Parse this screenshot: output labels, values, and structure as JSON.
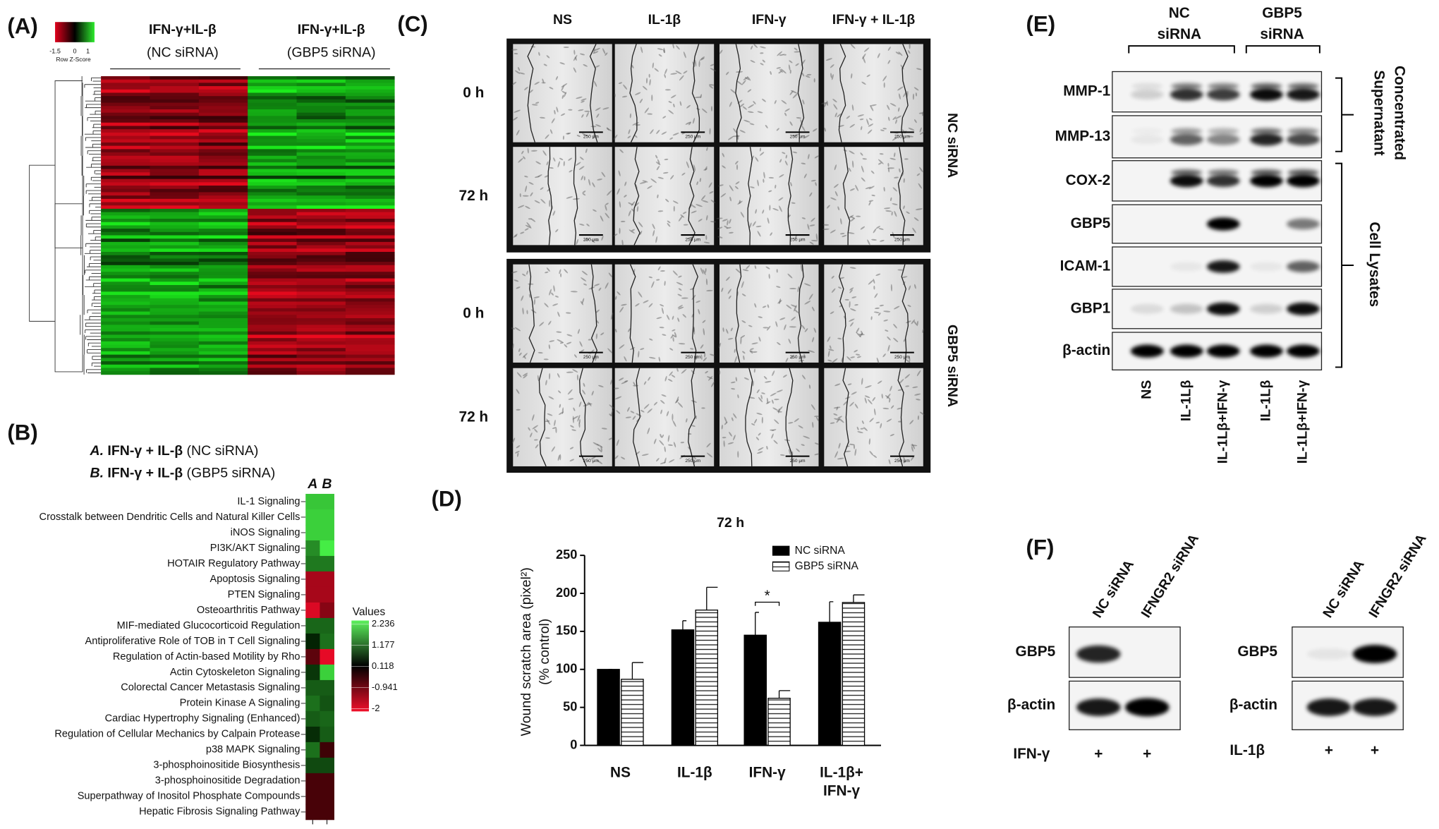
{
  "panels": {
    "A": {
      "label": "(A)",
      "key_ticks": [
        -1.5,
        0,
        1
      ],
      "key_title": "Row Z-Score",
      "groups": [
        {
          "treatment": "IFN-γ+IL-β",
          "group": "(NC siRNA)"
        },
        {
          "treatment": "IFN-γ+IL-β",
          "group": "(GBP5 siRNA)"
        }
      ]
    },
    "B": {
      "label": "(B)",
      "legend": [
        {
          "label": "A.",
          "treatment": "IFN-γ + IL-β",
          "group": "(NC siRNA)"
        },
        {
          "label": "B.",
          "treatment": "IFN-γ + IL-β",
          "group": "(GBP5 siRNA)"
        }
      ],
      "columns": [
        "A",
        "B"
      ],
      "pathways": [
        "IL-1 Signaling",
        "Crosstalk between Dendritic Cells and Natural Killer Cells",
        "iNOS Signaling",
        "PI3K/AKT Signaling",
        "HOTAIR Regulatory Pathway",
        "Apoptosis Signaling",
        "PTEN Signaling",
        "Osteoarthritis Pathway",
        "MIF-mediated Glucocorticoid Regulation",
        "Antiproliferative Role of TOB in T Cell Signaling",
        "Regulation of Actin-based Motility by Rho",
        "Actin Cytoskeleton Signaling",
        "Colorectal Cancer Metastasis Signaling",
        "Protein Kinase A Signaling",
        "Cardiac Hypertrophy Signaling (Enhanced)",
        "Regulation of Cellular Mechanics by Calpain Protease",
        "p38 MAPK Signaling",
        "3-phosphoinositide Biosynthesis",
        "3-phosphoinositide Degradation",
        "Superpathway of Inositol Phosphate Compounds",
        "Hepatic Fibrosis Signaling Pathway"
      ],
      "values": [
        [
          1.8,
          1.8
        ],
        [
          1.9,
          1.9
        ],
        [
          1.9,
          1.9
        ],
        [
          1.2,
          2.2
        ],
        [
          1.0,
          1.0
        ],
        [
          -1.3,
          -1.3
        ],
        [
          -1.3,
          -1.3
        ],
        [
          -1.8,
          -1.0
        ],
        [
          0.8,
          0.8
        ],
        [
          0.1,
          0.9
        ],
        [
          -0.6,
          -1.9
        ],
        [
          0.3,
          1.9
        ],
        [
          0.7,
          0.7
        ],
        [
          0.9,
          0.6
        ],
        [
          0.7,
          0.8
        ],
        [
          0.2,
          0.7
        ],
        [
          0.9,
          -0.3
        ],
        [
          0.5,
          0.5
        ],
        [
          -0.4,
          -0.4
        ],
        [
          -0.4,
          -0.4
        ],
        [
          -0.4,
          -0.4
        ]
      ],
      "colorbar_title": "Values",
      "colorbar_ticks": [
        2.236,
        1.177,
        0.118,
        -0.941,
        -2
      ]
    },
    "C": {
      "label": "(C)",
      "columns": [
        "NS",
        "IL-1β",
        "IFN-γ",
        "IFN-γ + IL-1β"
      ],
      "times": [
        "0 h",
        "72 h"
      ],
      "groups": [
        "NC siRNA",
        "GBP5 siRNA"
      ],
      "scale_bar": "250 μm"
    },
    "D": {
      "label": "(D)"
    },
    "E": {
      "label": "(E)",
      "groups": [
        [
          "NC",
          "siRNA"
        ],
        [
          "GBP5",
          "siRNA"
        ]
      ],
      "rows": [
        "MMP-1",
        "MMP-13",
        "COX-2",
        "GBP5",
        "ICAM-1",
        "GBP1",
        "β-actin"
      ],
      "fractions": [
        [
          "Concentrated",
          "Supernatant"
        ],
        [
          "Cell Lysates"
        ]
      ],
      "lanes": [
        "NS",
        "IL-1Lβ",
        "IL-1Lβ+IFN-γ",
        "IL-1Lβ",
        "IL-1Lβ+IFN-γ"
      ]
    },
    "F": {
      "label": "(F)",
      "blots": [
        {
          "lanes": [
            "NC siRNA",
            "IFNGR2 siRNA"
          ],
          "rows": [
            "GBP5",
            "β-actin"
          ],
          "treatment": "IFN-γ",
          "marks": [
            "+",
            "+"
          ]
        },
        {
          "lanes": [
            "NC siRNA",
            "IFNGR2 siRNA"
          ],
          "rows": [
            "GBP5",
            "β-actin"
          ],
          "treatment": "IL-1β",
          "marks": [
            "+",
            "+"
          ]
        }
      ]
    }
  },
  "chart_data": {
    "type": "bar",
    "title": "72 h",
    "y_label": "Wound scratch area (pixel²)",
    "y_label_2": "(% control)",
    "categories": [
      "NS",
      "IL-1β",
      "IFN-γ",
      "IL-1β+\nIFN-γ"
    ],
    "series": [
      {
        "name": "NC siRNA",
        "color": "#000000",
        "values": [
          100,
          152,
          145,
          162
        ],
        "errors": [
          0,
          12,
          30,
          27
        ]
      },
      {
        "name": "GBP5 siRNA",
        "color": "#ffffff",
        "pattern": "horizontal-stripes",
        "values": [
          87,
          178,
          62,
          188
        ],
        "errors": [
          22,
          30,
          10,
          10
        ]
      }
    ],
    "ylim": [
      0,
      250
    ],
    "yticks": [
      0,
      50,
      100,
      150,
      200,
      250
    ],
    "annotation": "*",
    "legend": "top-right"
  }
}
